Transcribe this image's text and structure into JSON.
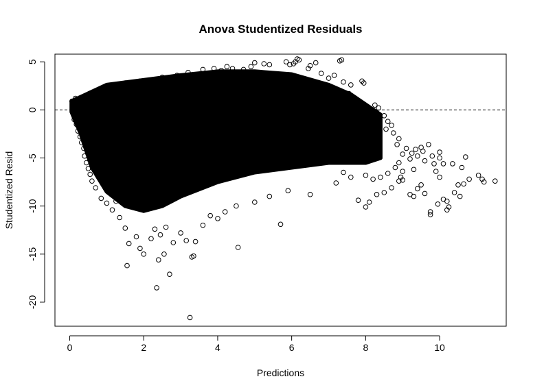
{
  "chart_data": {
    "type": "scatter",
    "title": "Anova Studentized Residuals",
    "xlabel": "Predictions",
    "ylabel": "Studentized Resid",
    "xlim": [
      -0.4,
      11.8
    ],
    "ylim": [
      -22.5,
      5.8
    ],
    "xticks": [
      "0",
      "2",
      "4",
      "6",
      "8",
      "10"
    ],
    "yticks": [
      "5",
      "0",
      "-5",
      "-10",
      "-15",
      "-20"
    ],
    "grid": false,
    "legend": "none",
    "reference_line": {
      "y": 0,
      "style": "dashed"
    },
    "marker": "open-circle",
    "point_color": "#000000",
    "dense_band": {
      "description_x_range": [
        0.05,
        8.4
      ],
      "upper": [
        [
          0.05,
          0.9
        ],
        [
          1.0,
          2.6
        ],
        [
          2.0,
          3.1
        ],
        [
          3.0,
          3.6
        ],
        [
          4.0,
          4.0
        ],
        [
          5.0,
          4.0
        ],
        [
          6.0,
          3.7
        ],
        [
          7.0,
          2.6
        ],
        [
          7.6,
          1.6
        ],
        [
          8.4,
          -0.5
        ]
      ],
      "lower": [
        [
          0.05,
          -0.2
        ],
        [
          0.3,
          -2.5
        ],
        [
          0.6,
          -6.0
        ],
        [
          1.0,
          -8.5
        ],
        [
          1.5,
          -10.0
        ],
        [
          2.0,
          -10.5
        ],
        [
          2.5,
          -10.0
        ],
        [
          3.0,
          -9.0
        ],
        [
          4.0,
          -7.5
        ],
        [
          5.0,
          -6.5
        ],
        [
          6.0,
          -6.0
        ],
        [
          7.0,
          -5.5
        ],
        [
          8.0,
          -5.5
        ],
        [
          8.4,
          -5.0
        ]
      ]
    },
    "points": [
      [
        3.25,
        -21.6
      ],
      [
        2.35,
        -18.5
      ],
      [
        2.7,
        -17.1
      ],
      [
        1.55,
        -16.2
      ],
      [
        3.3,
        -15.3
      ],
      [
        3.35,
        -15.2
      ],
      [
        2.4,
        -15.6
      ],
      [
        2.55,
        -15.0
      ],
      [
        2.0,
        -15.0
      ],
      [
        1.9,
        -14.4
      ],
      [
        4.55,
        -14.3
      ],
      [
        1.6,
        -13.9
      ],
      [
        3.15,
        -13.6
      ],
      [
        3.4,
        -13.7
      ],
      [
        2.2,
        -13.4
      ],
      [
        2.8,
        -13.8
      ],
      [
        1.8,
        -13.2
      ],
      [
        2.45,
        -13.0
      ],
      [
        3.0,
        -12.8
      ],
      [
        5.7,
        -11.9
      ],
      [
        2.3,
        -12.4
      ],
      [
        2.6,
        -12.2
      ],
      [
        1.5,
        -12.3
      ],
      [
        1.35,
        -11.2
      ],
      [
        3.6,
        -12.0
      ],
      [
        4.0,
        -11.3
      ],
      [
        3.8,
        -11.0
      ],
      [
        4.2,
        -10.6
      ],
      [
        4.5,
        -10.0
      ],
      [
        5.0,
        -9.6
      ],
      [
        5.4,
        -9.0
      ],
      [
        5.9,
        -8.4
      ],
      [
        6.5,
        -8.8
      ],
      [
        7.2,
        -7.6
      ],
      [
        7.8,
        -9.4
      ],
      [
        8.0,
        -10.1
      ],
      [
        8.1,
        -9.6
      ],
      [
        8.3,
        -8.8
      ],
      [
        8.5,
        -8.6
      ],
      [
        8.7,
        -8.1
      ],
      [
        8.9,
        -7.4
      ],
      [
        9.0,
        -7.3
      ],
      [
        9.2,
        -8.8
      ],
      [
        9.3,
        -9.0
      ],
      [
        9.4,
        -8.2
      ],
      [
        9.5,
        -7.8
      ],
      [
        9.6,
        -8.7
      ],
      [
        9.75,
        -10.6
      ],
      [
        9.75,
        -10.9
      ],
      [
        9.95,
        -9.8
      ],
      [
        10.1,
        -9.3
      ],
      [
        10.2,
        -9.5
      ],
      [
        10.25,
        -10.1
      ],
      [
        10.2,
        -10.4
      ],
      [
        10.4,
        -8.6
      ],
      [
        10.5,
        -7.8
      ],
      [
        10.55,
        -9.0
      ],
      [
        10.65,
        -7.7
      ],
      [
        10.8,
        -7.2
      ],
      [
        11.05,
        -6.8
      ],
      [
        11.15,
        -7.2
      ],
      [
        11.2,
        -7.5
      ],
      [
        11.5,
        -7.4
      ],
      [
        10.0,
        -7.0
      ],
      [
        9.9,
        -6.4
      ],
      [
        9.85,
        -5.6
      ],
      [
        10.1,
        -5.6
      ],
      [
        10.35,
        -5.6
      ],
      [
        10.6,
        -6.0
      ],
      [
        10.7,
        -4.9
      ],
      [
        10.0,
        -4.4
      ],
      [
        10.0,
        -5.0
      ],
      [
        9.8,
        -4.8
      ],
      [
        9.6,
        -5.3
      ],
      [
        9.4,
        -4.8
      ],
      [
        9.25,
        -4.5
      ],
      [
        9.1,
        -4.0
      ],
      [
        9.0,
        -4.6
      ],
      [
        8.9,
        -5.5
      ],
      [
        8.8,
        -6.0
      ],
      [
        8.6,
        -6.6
      ],
      [
        8.4,
        -7.0
      ],
      [
        8.2,
        -7.2
      ],
      [
        8.0,
        -6.8
      ],
      [
        7.6,
        -7.0
      ],
      [
        7.4,
        -6.5
      ],
      [
        8.85,
        -3.6
      ],
      [
        8.9,
        -3.0
      ],
      [
        8.75,
        -2.4
      ],
      [
        8.7,
        -1.6
      ],
      [
        8.6,
        -1.2
      ],
      [
        8.55,
        -2.0
      ],
      [
        8.5,
        -0.6
      ],
      [
        8.35,
        0.2
      ],
      [
        8.25,
        0.5
      ],
      [
        8.1,
        -0.3
      ],
      [
        9.35,
        -4.1
      ],
      [
        9.5,
        -3.9
      ],
      [
        9.7,
        -3.6
      ],
      [
        9.55,
        -4.3
      ],
      [
        9.2,
        -5.1
      ],
      [
        9.3,
        -6.2
      ],
      [
        9.0,
        -6.4
      ],
      [
        8.95,
        -7.0
      ],
      [
        7.9,
        3.0
      ],
      [
        7.95,
        2.8
      ],
      [
        7.6,
        2.6
      ],
      [
        7.4,
        2.9
      ],
      [
        7.3,
        5.1
      ],
      [
        7.35,
        5.2
      ],
      [
        6.65,
        4.9
      ],
      [
        6.5,
        4.6
      ],
      [
        6.45,
        4.3
      ],
      [
        6.15,
        5.3
      ],
      [
        6.1,
        5.0
      ],
      [
        6.05,
        4.8
      ],
      [
        6.2,
        5.2
      ],
      [
        5.95,
        4.7
      ],
      [
        5.85,
        5.0
      ],
      [
        5.4,
        4.7
      ],
      [
        5.25,
        4.8
      ],
      [
        5.0,
        4.9
      ],
      [
        4.9,
        4.5
      ],
      [
        4.7,
        4.2
      ],
      [
        4.4,
        4.3
      ],
      [
        4.25,
        4.5
      ],
      [
        4.1,
        4.1
      ],
      [
        3.9,
        4.3
      ],
      [
        3.6,
        4.2
      ],
      [
        3.2,
        3.9
      ],
      [
        2.9,
        3.6
      ],
      [
        2.5,
        3.4
      ],
      [
        1.9,
        3.0
      ],
      [
        1.5,
        2.8
      ],
      [
        7.0,
        3.3
      ],
      [
        7.15,
        3.6
      ],
      [
        6.8,
        3.8
      ],
      [
        7.55,
        1.7
      ],
      [
        7.7,
        1.0
      ],
      [
        7.75,
        0.3
      ],
      [
        1.0,
        -9.7
      ],
      [
        0.85,
        -9.2
      ],
      [
        1.15,
        -10.4
      ],
      [
        1.25,
        -9.5
      ],
      [
        0.7,
        -8.1
      ],
      [
        0.6,
        -7.4
      ],
      [
        0.55,
        -6.7
      ],
      [
        0.5,
        -6.1
      ],
      [
        0.45,
        -5.5
      ],
      [
        0.4,
        -4.8
      ],
      [
        0.38,
        -4.0
      ],
      [
        0.32,
        -3.4
      ],
      [
        0.28,
        -2.8
      ],
      [
        0.22,
        -2.2
      ],
      [
        0.18,
        -1.5
      ],
      [
        0.12,
        -1.0
      ],
      [
        0.1,
        -0.4
      ],
      [
        0.08,
        0.6
      ],
      [
        0.06,
        0.9
      ],
      [
        0.15,
        1.2
      ]
    ]
  }
}
